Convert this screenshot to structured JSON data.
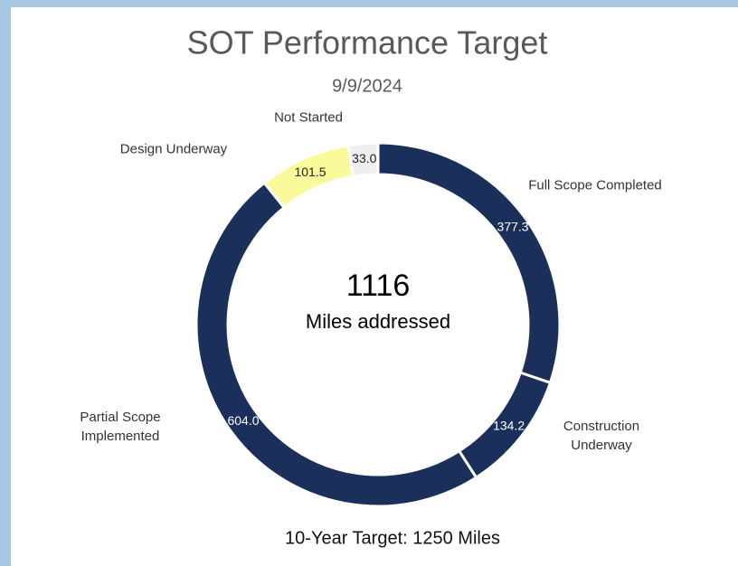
{
  "chart_data": {
    "type": "donut",
    "title": "SOT Performance Target",
    "subtitle": "9/9/2024",
    "categories": [
      "Full Scope Completed",
      "Construction Underway",
      "Partial Scope Implemented",
      "Design Underway",
      "Not Started"
    ],
    "values": [
      377.3,
      134.2,
      604.0,
      101.5,
      33.0
    ],
    "value_labels": [
      "377.3",
      "134.2",
      "604.0",
      "101.5",
      "33.0"
    ],
    "colors": [
      "#1b2f5b",
      "#1b2f5b",
      "#1b2f5b",
      "#fbfa9a",
      "#efefef"
    ],
    "center_value": 1116,
    "center_label": "Miles addressed",
    "footer": "10-Year Target: 1250 Miles"
  }
}
